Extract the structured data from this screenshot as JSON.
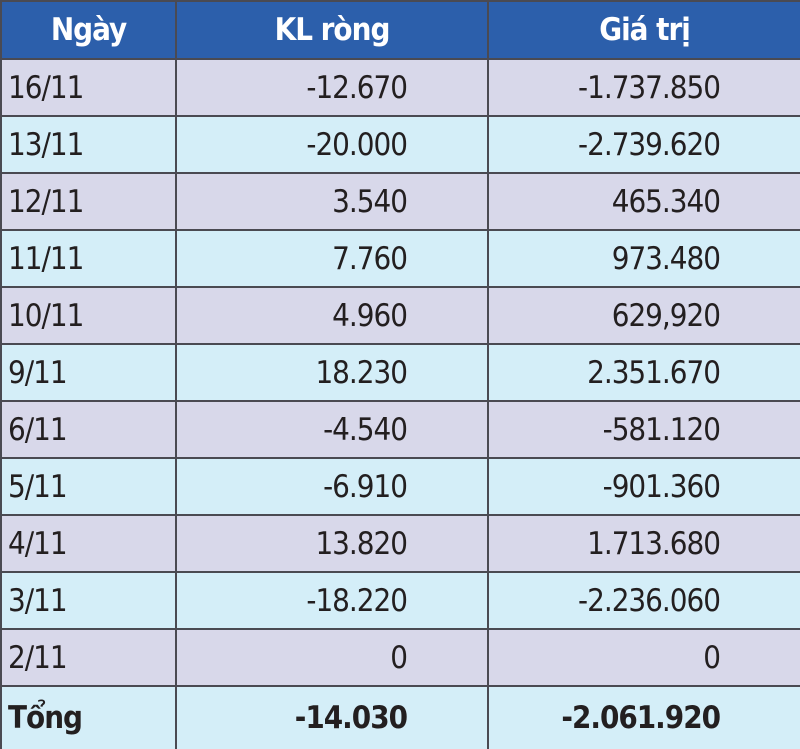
{
  "table": {
    "header": [
      "Ngày",
      "KL ròng",
      "Giá trị"
    ],
    "rows": [
      [
        "16/11",
        "-12.670",
        "-1.737.850"
      ],
      [
        "13/11",
        "-20.000",
        "-2.739.620"
      ],
      [
        "12/11",
        "3.540",
        "465.340"
      ],
      [
        "11/11",
        "7.760",
        "973.480"
      ],
      [
        "10/11",
        "4.960",
        "629,920"
      ],
      [
        "9/11",
        "18.230",
        "2.351.670"
      ],
      [
        "6/11",
        "-4.540",
        "-581.120"
      ],
      [
        "5/11",
        "-6.910",
        "-901.360"
      ],
      [
        "4/11",
        "13.820",
        "1.713.680"
      ],
      [
        "3/11",
        "-18.220",
        "-2.236.060"
      ],
      [
        "2/11",
        "0",
        "0"
      ]
    ],
    "total": [
      "Tổng",
      "-14.030",
      "-2.061.920"
    ]
  }
}
